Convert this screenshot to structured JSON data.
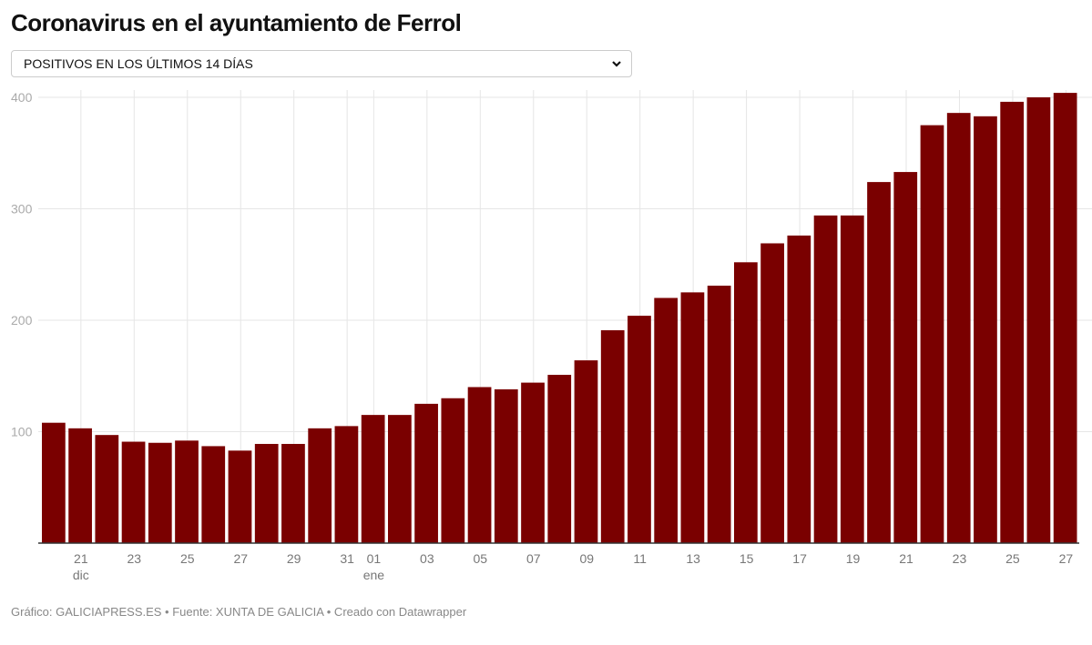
{
  "title": "Coronavirus en el ayuntamiento de Ferrol",
  "selector": {
    "selected": "POSITIVOS EN LOS ÚLTIMOS 14 DÍAS",
    "icon": "chevron-down-icon"
  },
  "footer": "Gráfico: GALICIAPRESS.ES • Fuente: XUNTA DE GALICIA • Creado con Datawrapper",
  "chart_data": {
    "type": "bar",
    "title": "Coronavirus en el ayuntamiento de Ferrol",
    "xlabel": "",
    "ylabel": "",
    "ylim": [
      0,
      400
    ],
    "yticks": [
      100,
      200,
      300,
      400
    ],
    "grid": true,
    "bar_color": "#7a0000",
    "categories": [
      "20 dic",
      "21 dic",
      "22 dic",
      "23 dic",
      "24 dic",
      "25 dic",
      "26 dic",
      "27 dic",
      "28 dic",
      "29 dic",
      "30 dic",
      "31 dic",
      "01 ene",
      "02 ene",
      "03 ene",
      "04 ene",
      "05 ene",
      "06 ene",
      "07 ene",
      "08 ene",
      "09 ene",
      "10 ene",
      "11 ene",
      "12 ene",
      "13 ene",
      "14 ene",
      "15 ene",
      "16 ene",
      "17 ene",
      "18 ene",
      "19 ene",
      "20 ene",
      "21 ene",
      "22 ene",
      "23 ene",
      "24 ene",
      "25 ene",
      "26 ene",
      "27 ene"
    ],
    "values": [
      108,
      103,
      97,
      91,
      90,
      92,
      87,
      83,
      89,
      89,
      103,
      105,
      115,
      115,
      125,
      130,
      140,
      138,
      144,
      151,
      164,
      191,
      204,
      220,
      225,
      231,
      252,
      269,
      276,
      294,
      294,
      324,
      333,
      375,
      386,
      383,
      396,
      400,
      404
    ],
    "xticks": [
      {
        "index": 1,
        "label": "21",
        "sub": "dic"
      },
      {
        "index": 3,
        "label": "23"
      },
      {
        "index": 5,
        "label": "25"
      },
      {
        "index": 7,
        "label": "27"
      },
      {
        "index": 9,
        "label": "29"
      },
      {
        "index": 11,
        "label": "31"
      },
      {
        "index": 12,
        "label": "01",
        "sub": "ene"
      },
      {
        "index": 14,
        "label": "03"
      },
      {
        "index": 16,
        "label": "05"
      },
      {
        "index": 18,
        "label": "07"
      },
      {
        "index": 20,
        "label": "09"
      },
      {
        "index": 22,
        "label": "11"
      },
      {
        "index": 24,
        "label": "13"
      },
      {
        "index": 26,
        "label": "15"
      },
      {
        "index": 28,
        "label": "17"
      },
      {
        "index": 30,
        "label": "19"
      },
      {
        "index": 32,
        "label": "21"
      },
      {
        "index": 34,
        "label": "23"
      },
      {
        "index": 36,
        "label": "25"
      },
      {
        "index": 38,
        "label": "27"
      }
    ]
  }
}
